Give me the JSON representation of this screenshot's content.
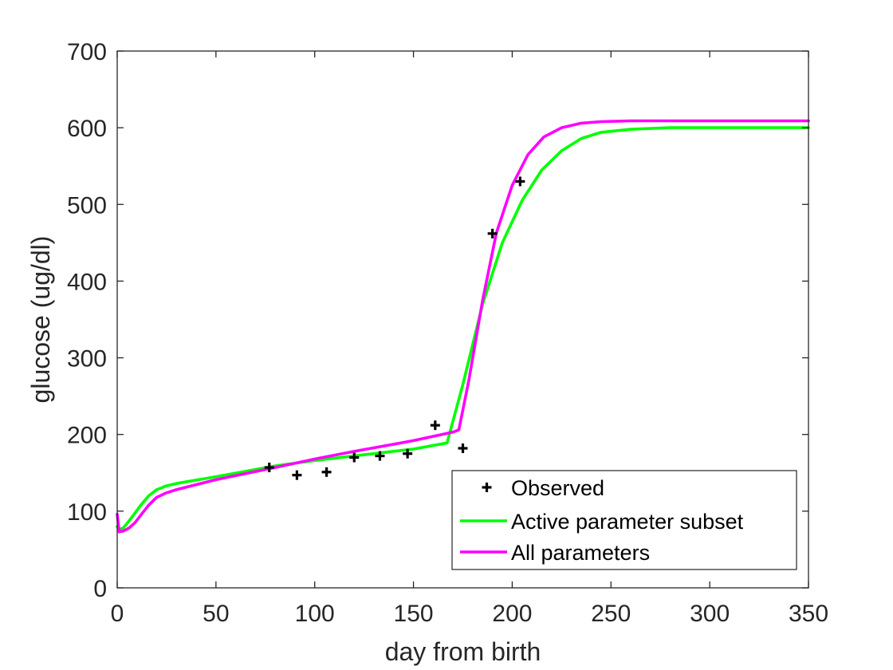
{
  "chart_data": {
    "type": "line",
    "title": "",
    "xlabel": "day from birth",
    "ylabel": "glucose (ug/dl)",
    "xlim": [
      0,
      350
    ],
    "ylim": [
      0,
      700
    ],
    "xticks": [
      0,
      50,
      100,
      150,
      200,
      250,
      300,
      350
    ],
    "yticks": [
      0,
      100,
      200,
      300,
      400,
      500,
      600,
      700
    ],
    "grid": false,
    "legend_position": "bottom-right",
    "observed": {
      "name": "Observed",
      "marker": "plus",
      "color": "#000000",
      "x": [
        77,
        91,
        106,
        120,
        133,
        147,
        161,
        175,
        190,
        204
      ],
      "y": [
        157,
        147,
        151,
        170,
        172,
        175,
        212,
        182,
        462,
        530
      ]
    },
    "series": [
      {
        "name": "Active parameter subset",
        "color": "#00ff00",
        "x": [
          0,
          1,
          3,
          5,
          8,
          12,
          16,
          20,
          25,
          30,
          50,
          80,
          100,
          120,
          150,
          167,
          175,
          185,
          195,
          205,
          215,
          225,
          235,
          245,
          260,
          280,
          300,
          350
        ],
        "y": [
          80,
          76,
          78,
          84,
          94,
          108,
          120,
          128,
          133,
          136,
          145,
          159,
          166,
          172,
          181,
          189,
          265,
          370,
          450,
          505,
          545,
          570,
          586,
          594,
          598,
          600,
          600,
          600
        ]
      },
      {
        "name": "All parameters",
        "color": "#ff00ff",
        "x": [
          0,
          1,
          3,
          6,
          9,
          12,
          16,
          20,
          25,
          30,
          50,
          80,
          100,
          120,
          150,
          170,
          173,
          178,
          185,
          192,
          200,
          208,
          216,
          225,
          235,
          245,
          260,
          280,
          350
        ],
        "y": [
          96,
          73,
          74,
          78,
          85,
          95,
          108,
          118,
          124,
          128,
          141,
          157,
          168,
          178,
          192,
          203,
          206,
          270,
          375,
          463,
          525,
          565,
          588,
          600,
          606,
          608,
          609,
          609,
          609
        ]
      }
    ]
  }
}
